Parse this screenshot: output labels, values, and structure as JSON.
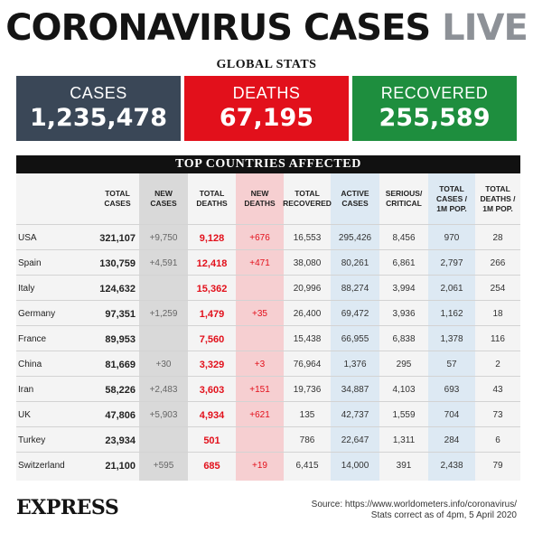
{
  "header": {
    "title_main": "CORONAVIRUS CASES",
    "title_live": "LIVE",
    "global_label": "GLOBAL STATS"
  },
  "global": {
    "cases_label": "CASES",
    "cases_value": "1,235,478",
    "deaths_label": "DEATHS",
    "deaths_value": "67,195",
    "recovered_label": "RECOVERED",
    "recovered_value": "255,589"
  },
  "table": {
    "title": "TOP COUNTRIES AFFECTED",
    "headers": [
      "TOTAL\nCASES",
      "NEW\nCASES",
      "TOTAL\nDEATHS",
      "NEW\nDEATHS",
      "TOTAL\nRECOVERED",
      "ACTIVE\nCASES",
      "SERIOUS/\nCRITICAL",
      "TOTAL\nCASES /\n1M POP.",
      "TOTAL\nDEATHS /\n1M POP."
    ],
    "rows": [
      {
        "country": "USA",
        "total_cases": "321,107",
        "new_cases": "+9,750",
        "total_deaths": "9,128",
        "new_deaths": "+676",
        "total_recovered": "16,553",
        "active_cases": "295,426",
        "serious": "8,456",
        "cases_per_1m": "970",
        "deaths_per_1m": "28"
      },
      {
        "country": "Spain",
        "total_cases": "130,759",
        "new_cases": "+4,591",
        "total_deaths": "12,418",
        "new_deaths": "+471",
        "total_recovered": "38,080",
        "active_cases": "80,261",
        "serious": "6,861",
        "cases_per_1m": "2,797",
        "deaths_per_1m": "266"
      },
      {
        "country": "Italy",
        "total_cases": "124,632",
        "new_cases": "",
        "total_deaths": "15,362",
        "new_deaths": "",
        "total_recovered": "20,996",
        "active_cases": "88,274",
        "serious": "3,994",
        "cases_per_1m": "2,061",
        "deaths_per_1m": "254"
      },
      {
        "country": "Germany",
        "total_cases": "97,351",
        "new_cases": "+1,259",
        "total_deaths": "1,479",
        "new_deaths": "+35",
        "total_recovered": "26,400",
        "active_cases": "69,472",
        "serious": "3,936",
        "cases_per_1m": "1,162",
        "deaths_per_1m": "18"
      },
      {
        "country": "France",
        "total_cases": "89,953",
        "new_cases": "",
        "total_deaths": "7,560",
        "new_deaths": "",
        "total_recovered": "15,438",
        "active_cases": "66,955",
        "serious": "6,838",
        "cases_per_1m": "1,378",
        "deaths_per_1m": "116"
      },
      {
        "country": "China",
        "total_cases": "81,669",
        "new_cases": "+30",
        "total_deaths": "3,329",
        "new_deaths": "+3",
        "total_recovered": "76,964",
        "active_cases": "1,376",
        "serious": "295",
        "cases_per_1m": "57",
        "deaths_per_1m": "2"
      },
      {
        "country": "Iran",
        "total_cases": "58,226",
        "new_cases": "+2,483",
        "total_deaths": "3,603",
        "new_deaths": "+151",
        "total_recovered": "19,736",
        "active_cases": "34,887",
        "serious": "4,103",
        "cases_per_1m": "693",
        "deaths_per_1m": "43"
      },
      {
        "country": "UK",
        "total_cases": "47,806",
        "new_cases": "+5,903",
        "total_deaths": "4,934",
        "new_deaths": "+621",
        "total_recovered": "135",
        "active_cases": "42,737",
        "serious": "1,559",
        "cases_per_1m": "704",
        "deaths_per_1m": "73"
      },
      {
        "country": "Turkey",
        "total_cases": "23,934",
        "new_cases": "",
        "total_deaths": "501",
        "new_deaths": "",
        "total_recovered": "786",
        "active_cases": "22,647",
        "serious": "1,311",
        "cases_per_1m": "284",
        "deaths_per_1m": "6"
      },
      {
        "country": "Switzerland",
        "total_cases": "21,100",
        "new_cases": "+595",
        "total_deaths": "685",
        "new_deaths": "+19",
        "total_recovered": "6,415",
        "active_cases": "14,000",
        "serious": "391",
        "cases_per_1m": "2,438",
        "deaths_per_1m": "79"
      }
    ]
  },
  "footer": {
    "logo": "EXPRESS",
    "source": "Source: https://www.worldometers.info/coronavirus/",
    "note": "Stats correct as of 4pm, 5 April 2020"
  },
  "colors": {
    "cases_box": "#3a4757",
    "deaths_box": "#e2101b",
    "recovered_box": "#1e8e3e",
    "new_cases_col": "#d9d9d9",
    "new_deaths_col": "#f6cfd1",
    "blue_col": "#dde9f3"
  }
}
